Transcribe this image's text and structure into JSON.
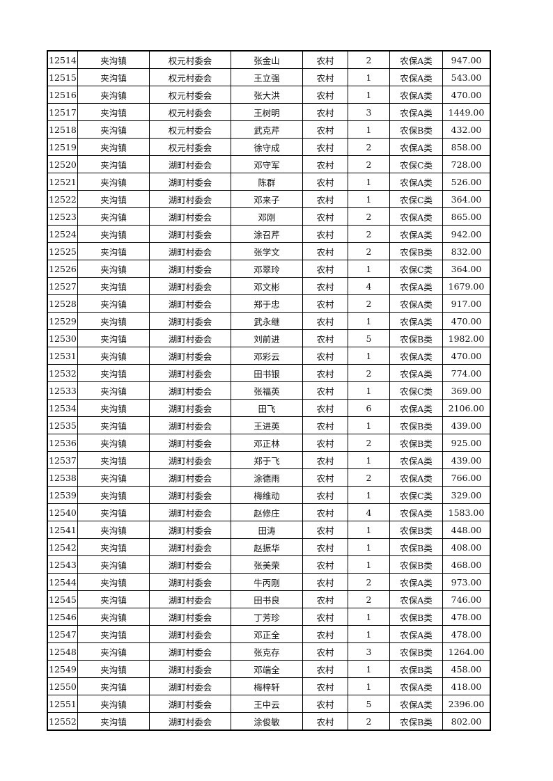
{
  "table": {
    "rows": [
      [
        "12514",
        "夹沟镇",
        "权元村委会",
        "张金山",
        "农村",
        "2",
        "农保A类",
        "947.00"
      ],
      [
        "12515",
        "夹沟镇",
        "权元村委会",
        "王立强",
        "农村",
        "1",
        "农保A类",
        "543.00"
      ],
      [
        "12516",
        "夹沟镇",
        "权元村委会",
        "张大洪",
        "农村",
        "1",
        "农保A类",
        "470.00"
      ],
      [
        "12517",
        "夹沟镇",
        "权元村委会",
        "王树明",
        "农村",
        "3",
        "农保A类",
        "1449.00"
      ],
      [
        "12518",
        "夹沟镇",
        "权元村委会",
        "武克芹",
        "农村",
        "1",
        "农保B类",
        "432.00"
      ],
      [
        "12519",
        "夹沟镇",
        "权元村委会",
        "徐守成",
        "农村",
        "2",
        "农保A类",
        "858.00"
      ],
      [
        "12520",
        "夹沟镇",
        "湖町村委会",
        "邓守军",
        "农村",
        "2",
        "农保C类",
        "728.00"
      ],
      [
        "12521",
        "夹沟镇",
        "湖町村委会",
        "陈群",
        "农村",
        "1",
        "农保A类",
        "526.00"
      ],
      [
        "12522",
        "夹沟镇",
        "湖町村委会",
        "邓来子",
        "农村",
        "1",
        "农保C类",
        "364.00"
      ],
      [
        "12523",
        "夹沟镇",
        "湖町村委会",
        "邓刚",
        "农村",
        "2",
        "农保A类",
        "865.00"
      ],
      [
        "12524",
        "夹沟镇",
        "湖町村委会",
        "涂召芹",
        "农村",
        "2",
        "农保A类",
        "942.00"
      ],
      [
        "12525",
        "夹沟镇",
        "湖町村委会",
        "张学文",
        "农村",
        "2",
        "农保B类",
        "832.00"
      ],
      [
        "12526",
        "夹沟镇",
        "湖町村委会",
        "邓翠玲",
        "农村",
        "1",
        "农保C类",
        "364.00"
      ],
      [
        "12527",
        "夹沟镇",
        "湖町村委会",
        "邓文彬",
        "农村",
        "4",
        "农保A类",
        "1679.00"
      ],
      [
        "12528",
        "夹沟镇",
        "湖町村委会",
        "郑于忠",
        "农村",
        "2",
        "农保A类",
        "917.00"
      ],
      [
        "12529",
        "夹沟镇",
        "湖町村委会",
        "武永继",
        "农村",
        "1",
        "农保A类",
        "470.00"
      ],
      [
        "12530",
        "夹沟镇",
        "湖町村委会",
        "刘前进",
        "农村",
        "5",
        "农保B类",
        "1982.00"
      ],
      [
        "12531",
        "夹沟镇",
        "湖町村委会",
        "邓彩云",
        "农村",
        "1",
        "农保A类",
        "470.00"
      ],
      [
        "12532",
        "夹沟镇",
        "湖町村委会",
        "田书银",
        "农村",
        "2",
        "农保A类",
        "774.00"
      ],
      [
        "12533",
        "夹沟镇",
        "湖町村委会",
        "张福英",
        "农村",
        "1",
        "农保C类",
        "369.00"
      ],
      [
        "12534",
        "夹沟镇",
        "湖町村委会",
        "田飞",
        "农村",
        "6",
        "农保A类",
        "2106.00"
      ],
      [
        "12535",
        "夹沟镇",
        "湖町村委会",
        "王进英",
        "农村",
        "1",
        "农保B类",
        "439.00"
      ],
      [
        "12536",
        "夹沟镇",
        "湖町村委会",
        "邓正林",
        "农村",
        "2",
        "农保B类",
        "925.00"
      ],
      [
        "12537",
        "夹沟镇",
        "湖町村委会",
        "郑于飞",
        "农村",
        "1",
        "农保A类",
        "439.00"
      ],
      [
        "12538",
        "夹沟镇",
        "湖町村委会",
        "涂德雨",
        "农村",
        "2",
        "农保A类",
        "766.00"
      ],
      [
        "12539",
        "夹沟镇",
        "湖町村委会",
        "梅维动",
        "农村",
        "1",
        "农保C类",
        "329.00"
      ],
      [
        "12540",
        "夹沟镇",
        "湖町村委会",
        "赵修庄",
        "农村",
        "4",
        "农保A类",
        "1583.00"
      ],
      [
        "12541",
        "夹沟镇",
        "湖町村委会",
        "田涛",
        "农村",
        "1",
        "农保B类",
        "448.00"
      ],
      [
        "12542",
        "夹沟镇",
        "湖町村委会",
        "赵振华",
        "农村",
        "1",
        "农保B类",
        "408.00"
      ],
      [
        "12543",
        "夹沟镇",
        "湖町村委会",
        "张美荣",
        "农村",
        "1",
        "农保B类",
        "468.00"
      ],
      [
        "12544",
        "夹沟镇",
        "湖町村委会",
        "牛丙刚",
        "农村",
        "2",
        "农保A类",
        "973.00"
      ],
      [
        "12545",
        "夹沟镇",
        "湖町村委会",
        "田书良",
        "农村",
        "2",
        "农保A类",
        "746.00"
      ],
      [
        "12546",
        "夹沟镇",
        "湖町村委会",
        "丁芳珍",
        "农村",
        "1",
        "农保B类",
        "478.00"
      ],
      [
        "12547",
        "夹沟镇",
        "湖町村委会",
        "邓正全",
        "农村",
        "1",
        "农保A类",
        "478.00"
      ],
      [
        "12548",
        "夹沟镇",
        "湖町村委会",
        "张克存",
        "农村",
        "3",
        "农保B类",
        "1264.00"
      ],
      [
        "12549",
        "夹沟镇",
        "湖町村委会",
        "邓端全",
        "农村",
        "1",
        "农保B类",
        "458.00"
      ],
      [
        "12550",
        "夹沟镇",
        "湖町村委会",
        "梅梓轩",
        "农村",
        "1",
        "农保A类",
        "418.00"
      ],
      [
        "12551",
        "夹沟镇",
        "湖町村委会",
        "王中云",
        "农村",
        "5",
        "农保A类",
        "2396.00"
      ],
      [
        "12552",
        "夹沟镇",
        "湖町村委会",
        "涂俊敏",
        "农村",
        "2",
        "农保B类",
        "802.00"
      ]
    ]
  }
}
